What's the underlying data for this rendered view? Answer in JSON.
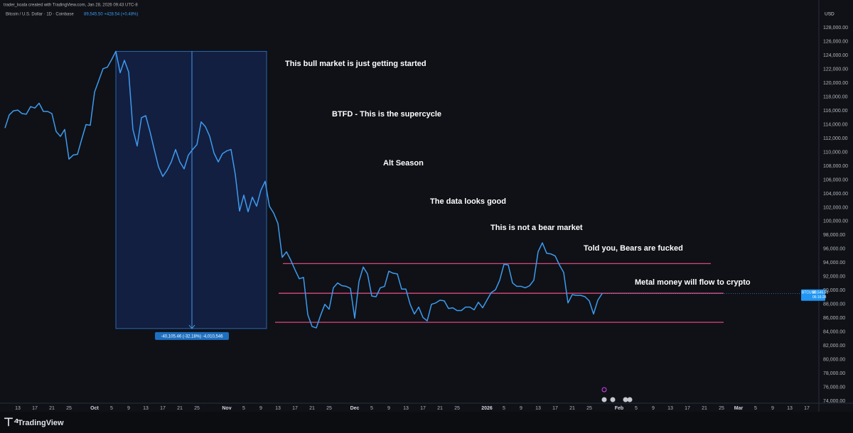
{
  "header": {
    "credit": "trader_koala created with TradingView.com, Jan 28, 2026 09:43 UTC-8",
    "quote": "89,545.50 +428.54 (+0.48%)",
    "currency": "USD"
  },
  "footer": {
    "brand": "TradingView"
  },
  "chart_data": {
    "type": "line",
    "categories": [
      null,
      null,
      null,
      "13",
      null,
      null,
      null,
      "17",
      null,
      null,
      null,
      "21",
      null,
      null,
      null,
      "25",
      null,
      null,
      null,
      null,
      null,
      "Oct",
      null,
      null,
      null,
      "5",
      null,
      null,
      null,
      "9",
      null,
      null,
      null,
      "13",
      null,
      null,
      null,
      "17",
      null,
      null,
      null,
      "21",
      null,
      null,
      null,
      "25",
      null,
      null,
      null,
      null,
      null,
      null,
      "Nov",
      null,
      null,
      null,
      "5",
      null,
      null,
      null,
      "9",
      null,
      null,
      null,
      "13",
      null,
      null,
      null,
      "17",
      null,
      null,
      null,
      "21",
      null,
      null,
      null,
      "25",
      null,
      null,
      null,
      null,
      null,
      "Dec",
      null,
      null,
      null,
      "5",
      null,
      null,
      null,
      "9",
      null,
      null,
      null,
      "13",
      null,
      null,
      null,
      "17",
      null,
      null,
      null,
      "21",
      null,
      null,
      null,
      "25",
      null,
      null,
      null,
      null,
      null,
      null,
      "2026",
      null,
      null,
      null,
      "5",
      null,
      null,
      null,
      "9",
      null,
      null,
      null,
      "13",
      null,
      null,
      null,
      "17",
      null,
      null,
      null,
      "21",
      null,
      null,
      null,
      "25",
      null,
      null,
      null,
      null,
      null,
      null,
      "Feb",
      null,
      null,
      null,
      "5",
      null,
      null,
      null,
      "9",
      null,
      null,
      null,
      "13",
      null,
      null,
      null,
      "17",
      null,
      null,
      null,
      "21",
      null,
      null,
      null,
      "25",
      null,
      null,
      null,
      "Mar",
      null,
      null,
      null,
      "5",
      null,
      null,
      null,
      "9",
      null,
      null,
      null,
      "13",
      null,
      null,
      null,
      "17",
      null,
      null
    ],
    "series": [
      {
        "name": "Bitcoin / U.S. Dollar · 1D · Coinbase",
        "color": "#3d9bf0",
        "values": [
          113500,
          115400,
          116000,
          116100,
          115600,
          115500,
          116600,
          116400,
          117100,
          115900,
          115900,
          115600,
          113000,
          112300,
          113300,
          109000,
          109600,
          109700,
          111900,
          114000,
          113900,
          118700,
          120400,
          122100,
          122300,
          123400,
          124600,
          121500,
          123300,
          121600,
          113300,
          110900,
          115000,
          115300,
          113000,
          110400,
          107900,
          106500,
          107400,
          108600,
          110400,
          108600,
          107600,
          109600,
          110400,
          111100,
          114400,
          113700,
          112300,
          109900,
          108600,
          109800,
          110200,
          110400,
          106800,
          101500,
          103800,
          101400,
          103500,
          102200,
          104500,
          105800,
          102200,
          101200,
          99700,
          94800,
          95600,
          94400,
          93000,
          91700,
          91900,
          86500,
          84800,
          84600,
          86400,
          88000,
          87300,
          90400,
          91100,
          90700,
          90600,
          90300,
          86000,
          91300,
          93400,
          92400,
          89200,
          89100,
          90400,
          90600,
          92800,
          92500,
          92400,
          90200,
          90200,
          88000,
          86600,
          87600,
          86100,
          85600,
          88000,
          88200,
          88600,
          88500,
          87400,
          87500,
          87100,
          87100,
          87600,
          87600,
          87200,
          88300,
          87500,
          88600,
          89700,
          90100,
          91500,
          93800,
          93700,
          91100,
          90600,
          90600,
          90400,
          90700,
          91500,
          95600,
          96900,
          95400,
          95300,
          95000,
          93700,
          92600,
          88200,
          89400,
          89300,
          89300,
          89100,
          88500,
          86600,
          88600,
          89545.5,
          null,
          null,
          null,
          null,
          null,
          null,
          null,
          null,
          null,
          null,
          null,
          null,
          null,
          null,
          null,
          null,
          null,
          null,
          null,
          null,
          null,
          null,
          null,
          null,
          null,
          null,
          null,
          null,
          null,
          null,
          null,
          null,
          null,
          null,
          null,
          null,
          null,
          null,
          null,
          null,
          null,
          null,
          null,
          null,
          null,
          null,
          null,
          null,
          null,
          null
        ]
      }
    ],
    "ylim": [
      73700,
      131000
    ],
    "yticks": [
      {
        "value": 74000,
        "label": "74,000.00"
      },
      {
        "value": 76000,
        "label": "76,000.00"
      },
      {
        "value": 78000,
        "label": "78,000.00"
      },
      {
        "value": 80000,
        "label": "80,000.00"
      },
      {
        "value": 82000,
        "label": "82,000.00"
      },
      {
        "value": 84000,
        "label": "84,000.00"
      },
      {
        "value": 86000,
        "label": "86,000.00"
      },
      {
        "value": 88000,
        "label": "88,000.00"
      },
      {
        "value": 90000,
        "label": "90,000.00"
      },
      {
        "value": 92000,
        "label": "92,000.00"
      },
      {
        "value": 94000,
        "label": "94,000.00"
      },
      {
        "value": 96000,
        "label": "96,000.00"
      },
      {
        "value": 98000,
        "label": "98,000.00"
      },
      {
        "value": 100000,
        "label": "100,000.00"
      },
      {
        "value": 102000,
        "label": "102,000.00"
      },
      {
        "value": 104000,
        "label": "104,000.00"
      },
      {
        "value": 106000,
        "label": "106,000.00"
      },
      {
        "value": 108000,
        "label": "108,000.00"
      },
      {
        "value": 110000,
        "label": "110,000.00"
      },
      {
        "value": 112000,
        "label": "112,000.00"
      },
      {
        "value": 114000,
        "label": "114,000.00"
      },
      {
        "value": 116000,
        "label": "116,000.00"
      },
      {
        "value": 118000,
        "label": "118,000.00"
      },
      {
        "value": 120000,
        "label": "120,000.00"
      },
      {
        "value": 122000,
        "label": "122,000.00"
      },
      {
        "value": 124000,
        "label": "124,000.00"
      },
      {
        "value": 126000,
        "label": "126,000.00"
      },
      {
        "value": 128000,
        "label": "128,000.00"
      }
    ],
    "grid": false,
    "levels": [
      {
        "value": 93900,
        "color": "#f0508a"
      },
      {
        "value": 89600,
        "color": "#f0508a"
      },
      {
        "value": 85400,
        "color": "#f0508a"
      }
    ],
    "measure": {
      "from": 124600,
      "to": 84494.54,
      "label": "-40,105.46 (-32.18%) -4,010,546"
    },
    "last_price": {
      "symbol": "BTCUSD",
      "value": 89545.5,
      "label": "89,545.50",
      "countdown": "06:16:28"
    },
    "annotations": [
      "This bull market is just getting started",
      "BTFD - This is the supercycle",
      "Alt Season",
      "The data looks good",
      "This is not a bear market",
      "Told you, Bears are fucked",
      "Metal money will flow to crypto"
    ]
  }
}
